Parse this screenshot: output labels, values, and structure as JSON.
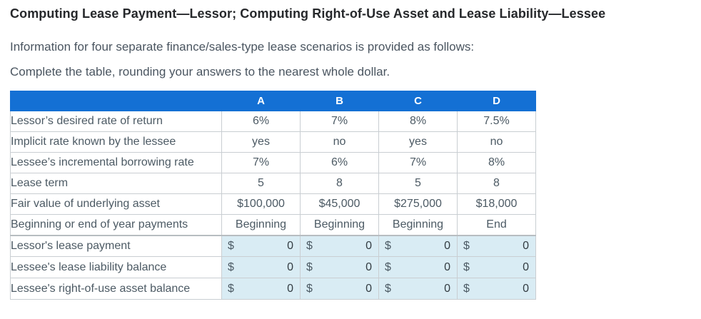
{
  "page": {
    "title": "Computing Lease Payment—Lessor; Computing Right-of-Use Asset and Lease Liability—Lessee",
    "intro": "Information for four separate finance/sales-type lease scenarios is provided as follows:",
    "instruction": "Complete the table, rounding your answers to the nearest whole dollar."
  },
  "table": {
    "columns": [
      "",
      "A",
      "B",
      "C",
      "D"
    ],
    "info_rows": [
      {
        "label": "Lessor’s desired rate of return",
        "values": [
          "6%",
          "7%",
          "8%",
          "7.5%"
        ]
      },
      {
        "label": "Implicit rate known by the lessee",
        "values": [
          "yes",
          "no",
          "yes",
          "no"
        ]
      },
      {
        "label": "Lessee’s incremental borrowing rate",
        "values": [
          "7%",
          "6%",
          "7%",
          "8%"
        ]
      },
      {
        "label": "Lease term",
        "values": [
          "5",
          "8",
          "5",
          "8"
        ]
      },
      {
        "label": "Fair value of underlying asset",
        "values": [
          "$100,000",
          "$45,000",
          "$275,000",
          "$18,000"
        ]
      },
      {
        "label": "Beginning or end of year payments",
        "values": [
          "Beginning",
          "Beginning",
          "Beginning",
          "End"
        ]
      }
    ],
    "answer_rows": [
      {
        "label": "Lessor's lease payment",
        "currency": "$",
        "values": [
          "0",
          "0",
          "0",
          "0"
        ]
      },
      {
        "label": "Lessee's lease liability balance",
        "currency": "$",
        "values": [
          "0",
          "0",
          "0",
          "0"
        ]
      },
      {
        "label": "Lessee's right-of-use asset balance",
        "currency": "$",
        "values": [
          "0",
          "0",
          "0",
          "0"
        ]
      }
    ],
    "colors": {
      "header_bg": "#1470d4",
      "header_text": "#ffffff",
      "answer_cell_bg": "#d9ecf4",
      "border": "#c9ced2",
      "body_text": "#4c5a64",
      "title_text": "#26282b",
      "paragraph_text": "#4a5560"
    }
  }
}
